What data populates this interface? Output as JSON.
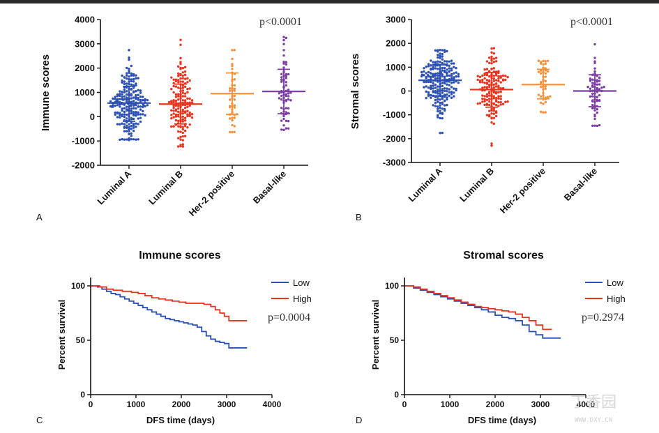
{
  "chart_data": [
    {
      "panel": "A",
      "type": "scatter",
      "subtype": "dot-plot",
      "title": "",
      "ylabel": "Immune scores",
      "xlabel": "",
      "ylim": [
        -2000,
        4000
      ],
      "yticks": [
        "-2000",
        "-1000",
        "0",
        "1000",
        "2000",
        "3000",
        "4000"
      ],
      "categories": [
        "Luminal A",
        "Luminal B",
        "Her-2 positive",
        "Basal-like"
      ],
      "colors": [
        "#2a4fb5",
        "#e8331f",
        "#f5913a",
        "#7b3fa3"
      ],
      "counts": [
        230,
        160,
        45,
        70
      ],
      "mean": [
        560,
        520,
        950,
        1040
      ],
      "sd_low": [
        -190,
        -300,
        90,
        120
      ],
      "sd_high": [
        1250,
        1340,
        1800,
        1950
      ],
      "min": [
        -950,
        -1220,
        -650,
        -550
      ],
      "max": [
        2730,
        3180,
        2720,
        3280
      ],
      "annotation": "p<0.0001"
    },
    {
      "panel": "B",
      "type": "scatter",
      "subtype": "dot-plot",
      "title": "",
      "ylabel": "Stromal scores",
      "xlabel": "",
      "ylim": [
        -3000,
        3000
      ],
      "yticks": [
        "-3000",
        "-2000",
        "-1000",
        "0",
        "1000",
        "2000",
        "3000"
      ],
      "categories": [
        "Luminal A",
        "Luminal B",
        "Her-2 positive",
        "Basal-like"
      ],
      "colors": [
        "#2a4fb5",
        "#e8331f",
        "#f5913a",
        "#7b3fa3"
      ],
      "counts": [
        230,
        160,
        45,
        70
      ],
      "mean": [
        450,
        60,
        270,
        0
      ],
      "sd_low": [
        -200,
        -680,
        -330,
        -660
      ],
      "sd_high": [
        1100,
        780,
        910,
        680
      ],
      "min": [
        -1750,
        -2290,
        -880,
        -1450
      ],
      "max": [
        1700,
        1780,
        1250,
        1960
      ],
      "annotation": "p<0.0001"
    },
    {
      "panel": "C",
      "type": "line",
      "subtype": "kaplan-meier",
      "title": "Immune scores",
      "xlabel": "DFS time (days)",
      "ylabel": "Percent survival",
      "xlim": [
        0,
        4000
      ],
      "ylim": [
        0,
        100
      ],
      "xticks": [
        "0",
        "1000",
        "2000",
        "3000",
        "4000"
      ],
      "yticks": [
        "0",
        "50",
        "100"
      ],
      "series": [
        {
          "name": "Low",
          "color": "#2a4fb5",
          "x": [
            0,
            150,
            250,
            350,
            450,
            550,
            650,
            750,
            850,
            950,
            1050,
            1150,
            1250,
            1350,
            1450,
            1550,
            1650,
            1750,
            1850,
            1950,
            2050,
            2150,
            2250,
            2350,
            2450,
            2550,
            2650,
            2750,
            2850,
            2950,
            3050,
            3450
          ],
          "y": [
            100,
            99,
            97,
            95,
            93,
            92,
            90,
            88,
            86,
            84,
            82,
            80,
            78,
            76,
            74,
            72,
            70,
            69,
            68,
            67,
            66,
            65,
            64,
            62,
            58,
            54,
            51,
            49,
            48,
            47,
            43,
            43
          ]
        },
        {
          "name": "High",
          "color": "#e8331f",
          "x": [
            0,
            200,
            350,
            500,
            700,
            900,
            1050,
            1200,
            1350,
            1500,
            1650,
            1800,
            1950,
            2100,
            2300,
            2500,
            2650,
            2750,
            2850,
            2950,
            3050,
            3450
          ],
          "y": [
            100,
            99,
            97,
            96,
            95,
            94,
            93,
            91,
            89,
            88,
            87,
            86,
            85,
            84,
            84,
            83,
            81,
            78,
            75,
            72,
            68,
            68
          ]
        }
      ],
      "annotation": "p=0.0004"
    },
    {
      "panel": "D",
      "type": "line",
      "subtype": "kaplan-meier",
      "title": "Stromal scores",
      "xlabel": "DFS time (days)",
      "ylabel": "Percent survival",
      "xlim": [
        0,
        4000
      ],
      "ylim": [
        0,
        100
      ],
      "xticks": [
        "0",
        "1000",
        "2000",
        "3000",
        "4000"
      ],
      "yticks": [
        "0",
        "50",
        "100"
      ],
      "series": [
        {
          "name": "Low",
          "color": "#2a4fb5",
          "x": [
            0,
            200,
            350,
            500,
            650,
            800,
            950,
            1100,
            1250,
            1400,
            1550,
            1700,
            1850,
            2000,
            2150,
            2300,
            2450,
            2600,
            2750,
            2900,
            3050,
            3450
          ],
          "y": [
            100,
            98,
            96,
            94,
            92,
            90,
            88,
            86,
            84,
            82,
            80,
            78,
            76,
            73,
            71,
            70,
            68,
            64,
            58,
            55,
            52,
            52
          ]
        },
        {
          "name": "High",
          "color": "#e8331f",
          "x": [
            0,
            200,
            350,
            500,
            650,
            800,
            950,
            1100,
            1250,
            1400,
            1550,
            1700,
            1850,
            2000,
            2150,
            2300,
            2450,
            2600,
            2750,
            2900,
            3050,
            3250
          ],
          "y": [
            100,
            99,
            97,
            95,
            93,
            91,
            89,
            87,
            85,
            83,
            81,
            80,
            79,
            78,
            77,
            76,
            74,
            71,
            68,
            64,
            60,
            60
          ]
        }
      ],
      "annotation": "p=0.2974"
    }
  ],
  "watermark": {
    "mark": "丁香园",
    "url": "WWW.DXY.CN"
  }
}
